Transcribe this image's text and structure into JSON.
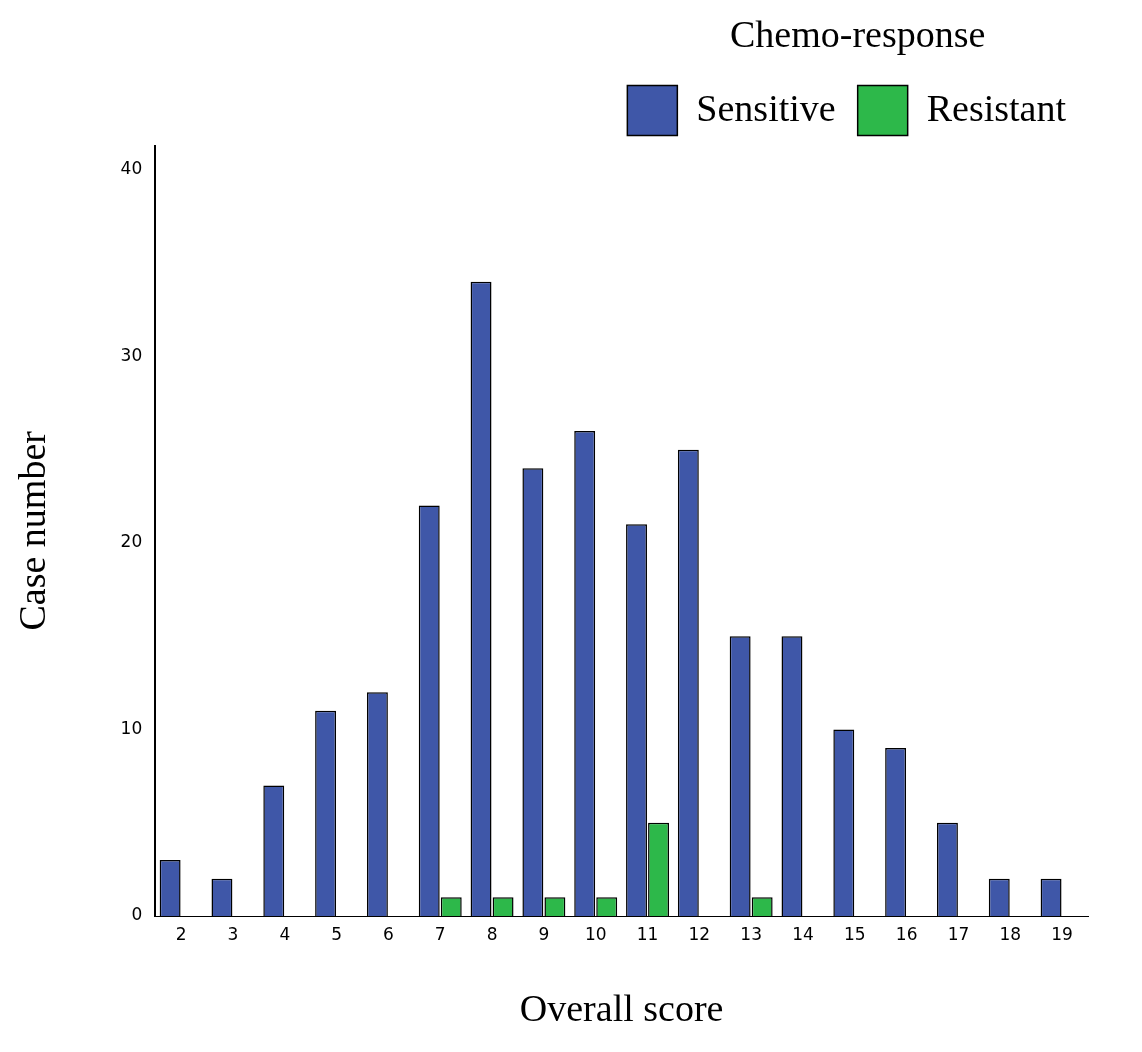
{
  "chart_data": {
    "type": "bar",
    "xlabel": "Overall score",
    "ylabel": "Case number",
    "legend_title": "Chemo-response",
    "legend": "top right",
    "grid": false,
    "categories": [
      "2",
      "3",
      "4",
      "5",
      "6",
      "7",
      "8",
      "9",
      "10",
      "11",
      "12",
      "13",
      "14",
      "15",
      "16",
      "17",
      "18",
      "19"
    ],
    "series": [
      {
        "name": "Sensitive",
        "color": "#3f57a8",
        "values": [
          3,
          2,
          7,
          11,
          12,
          22,
          34,
          24,
          26,
          21,
          25,
          15,
          15,
          10,
          9,
          5,
          2,
          2
        ]
      },
      {
        "name": "Resistant",
        "color": "#2db84a",
        "values": [
          null,
          null,
          null,
          null,
          null,
          1,
          1,
          1,
          1,
          5,
          null,
          1,
          null,
          null,
          null,
          null,
          null,
          null
        ]
      }
    ],
    "ylim": [
      0,
      41.3
    ],
    "yticks": [
      0,
      10,
      20,
      30,
      40
    ]
  }
}
